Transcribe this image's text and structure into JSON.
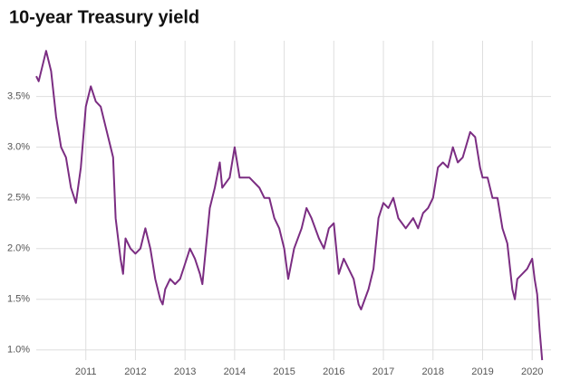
{
  "chart_data": {
    "type": "line",
    "title": "10-year Treasury yield",
    "color": "#7b2d82",
    "grid": true,
    "x": [
      2010.0,
      2010.05,
      2010.2,
      2010.3,
      2010.4,
      2010.5,
      2010.6,
      2010.7,
      2010.8,
      2010.9,
      2011.0,
      2011.1,
      2011.2,
      2011.3,
      2011.4,
      2011.5,
      2011.55,
      2011.6,
      2011.65,
      2011.7,
      2011.75,
      2011.8,
      2011.9,
      2012.0,
      2012.1,
      2012.2,
      2012.3,
      2012.4,
      2012.5,
      2012.55,
      2012.6,
      2012.7,
      2012.8,
      2012.9,
      2013.0,
      2013.1,
      2013.2,
      2013.3,
      2013.35,
      2013.5,
      2013.6,
      2013.7,
      2013.75,
      2013.9,
      2014.0,
      2014.1,
      2014.3,
      2014.5,
      2014.6,
      2014.7,
      2014.8,
      2014.9,
      2015.0,
      2015.08,
      2015.2,
      2015.35,
      2015.45,
      2015.55,
      2015.7,
      2015.8,
      2015.9,
      2016.0,
      2016.1,
      2016.2,
      2016.3,
      2016.4,
      2016.5,
      2016.55,
      2016.7,
      2016.8,
      2016.9,
      2017.0,
      2017.1,
      2017.2,
      2017.3,
      2017.45,
      2017.6,
      2017.7,
      2017.8,
      2017.9,
      2018.0,
      2018.1,
      2018.2,
      2018.3,
      2018.4,
      2018.5,
      2018.6,
      2018.75,
      2018.85,
      2018.95,
      2019.0,
      2019.1,
      2019.2,
      2019.3,
      2019.4,
      2019.5,
      2019.6,
      2019.65,
      2019.7,
      2019.8,
      2019.9,
      2020.0,
      2020.05,
      2020.1,
      2020.15,
      2020.2
    ],
    "values": [
      3.7,
      3.65,
      3.95,
      3.75,
      3.3,
      3.0,
      2.9,
      2.6,
      2.45,
      2.8,
      3.4,
      3.6,
      3.45,
      3.4,
      3.2,
      3.0,
      2.9,
      2.3,
      2.1,
      1.9,
      1.75,
      2.1,
      2.0,
      1.95,
      2.0,
      2.2,
      2.0,
      1.7,
      1.5,
      1.45,
      1.6,
      1.7,
      1.65,
      1.7,
      1.85,
      2.0,
      1.9,
      1.75,
      1.65,
      2.4,
      2.6,
      2.85,
      2.6,
      2.7,
      3.0,
      2.7,
      2.7,
      2.6,
      2.5,
      2.5,
      2.3,
      2.2,
      2.0,
      1.7,
      2.0,
      2.2,
      2.4,
      2.3,
      2.1,
      2.0,
      2.2,
      2.25,
      1.75,
      1.9,
      1.8,
      1.7,
      1.45,
      1.4,
      1.6,
      1.8,
      2.3,
      2.45,
      2.4,
      2.5,
      2.3,
      2.2,
      2.3,
      2.2,
      2.35,
      2.4,
      2.5,
      2.8,
      2.85,
      2.8,
      3.0,
      2.85,
      2.9,
      3.15,
      3.1,
      2.8,
      2.7,
      2.7,
      2.5,
      2.5,
      2.2,
      2.05,
      1.6,
      1.5,
      1.7,
      1.75,
      1.8,
      1.9,
      1.7,
      1.55,
      1.2,
      0.9
    ],
    "xlim": [
      2010.0,
      2020.38
    ],
    "xticks": [
      2011,
      2012,
      2013,
      2014,
      2015,
      2016,
      2017,
      2018,
      2019,
      2020
    ],
    "ylim": [
      0.9,
      4.05
    ],
    "yticks": [
      {
        "value": 1.0,
        "label": "1.0%"
      },
      {
        "value": 1.5,
        "label": "1.5%"
      },
      {
        "value": 2.0,
        "label": "2.0%"
      },
      {
        "value": 2.5,
        "label": "2.5%"
      },
      {
        "value": 3.0,
        "label": "3.0%"
      },
      {
        "value": 3.5,
        "label": "3.5%"
      }
    ]
  }
}
